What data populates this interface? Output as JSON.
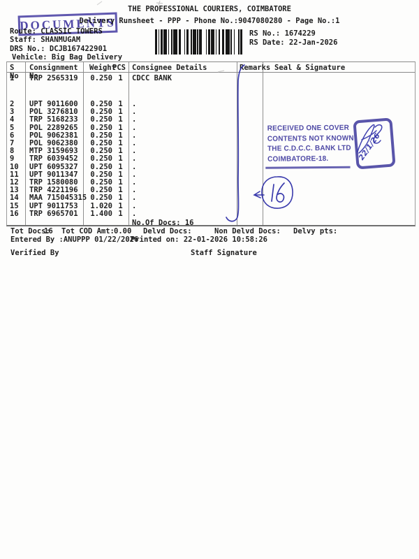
{
  "document": {
    "title": "THE PROFESSIONAL COURIERS, COIMBATORE",
    "subtitle": "Delivery Runsheet - PPP - Phone No.:9047080280 - Page No.:1",
    "route_label": "Route:",
    "route_value": "CLASSIC TOWERS",
    "staff_label": "Staff:",
    "staff_value": "SHANMUGAM",
    "drs_label": "DRS No.:",
    "drs_value": "DCJB167422901",
    "vehicle_label": "Vehicle:",
    "vehicle_value": "Big Bag Delivery",
    "rs_no_label": "RS No.:",
    "rs_no_value": "1674229",
    "rs_date_label": "RS Date:",
    "rs_date_value": "22-Jan-2026"
  },
  "table": {
    "columns": {
      "sno": "S No",
      "consignment": "Consignment No",
      "weight": "Weight",
      "pcs": "PCS",
      "consignee": "Consignee Details",
      "remarks": "Remarks",
      "seal": "Seal & Signature"
    },
    "rows": [
      {
        "sno": "1",
        "consignment": "TRP 2565319",
        "weight": "0.250",
        "pcs": "1",
        "consignee": "CDCC BANK"
      },
      {
        "sno": "2",
        "consignment": "UPT 9011600",
        "weight": "0.250",
        "pcs": "1",
        "consignee": "."
      },
      {
        "sno": "3",
        "consignment": "POL 3276810",
        "weight": "0.250",
        "pcs": "1",
        "consignee": "."
      },
      {
        "sno": "4",
        "consignment": "TRP 5168233",
        "weight": "0.250",
        "pcs": "1",
        "consignee": "."
      },
      {
        "sno": "5",
        "consignment": "POL 2289265",
        "weight": "0.250",
        "pcs": "1",
        "consignee": "."
      },
      {
        "sno": "6",
        "consignment": "POL 9062381",
        "weight": "0.250",
        "pcs": "1",
        "consignee": "."
      },
      {
        "sno": "7",
        "consignment": "POL 9062380",
        "weight": "0.250",
        "pcs": "1",
        "consignee": "."
      },
      {
        "sno": "8",
        "consignment": "MTP 3159693",
        "weight": "0.250",
        "pcs": "1",
        "consignee": "."
      },
      {
        "sno": "9",
        "consignment": "TRP 6039452",
        "weight": "0.250",
        "pcs": "1",
        "consignee": "."
      },
      {
        "sno": "10",
        "consignment": "UPT 6095327",
        "weight": "0.250",
        "pcs": "1",
        "consignee": "."
      },
      {
        "sno": "11",
        "consignment": "UPT 9011347",
        "weight": "0.250",
        "pcs": "1",
        "consignee": "."
      },
      {
        "sno": "12",
        "consignment": "TRP 1580080",
        "weight": "0.250",
        "pcs": "1",
        "consignee": "."
      },
      {
        "sno": "13",
        "consignment": "TRP 4221196",
        "weight": "0.250",
        "pcs": "1",
        "consignee": "."
      },
      {
        "sno": "14",
        "consignment": "MAA 715045315",
        "weight": "0.250",
        "pcs": "1",
        "consignee": "."
      },
      {
        "sno": "15",
        "consignment": "UPT 9011753",
        "weight": "1.020",
        "pcs": "1",
        "consignee": "."
      },
      {
        "sno": "16",
        "consignment": "TRP 6965701",
        "weight": "1.400",
        "pcs": "1",
        "consignee": "."
      }
    ],
    "no_of_docs": "No.Of Docs: 16"
  },
  "footer": {
    "tot_docs_label": "Tot Docs:",
    "tot_docs_value": "16",
    "tot_cod_label": "Tot COD Amt:",
    "tot_cod_value": "0.00",
    "delvd_docs_label": "Delvd Docs:",
    "non_delvd_docs_label": "Non Delvd Docs:",
    "delvy_pts_label": "Delvy pts:",
    "entered_by": "Entered By :ANUPPP 01/22/2026",
    "printed_on": "Printed on: 22-01-2026 10:58:26",
    "verified_by": "Verified By",
    "staff_signature": "Staff Signature"
  },
  "annotations": {
    "documents_stamp_text": "DOCUMENTS",
    "received_stamp_lines": [
      "RECEIVED ONE COVER",
      "CONTENTS NOT KNOWN",
      "THE C.D.C.C. BANK LTD",
      "COIMBATORE-18."
    ],
    "signature_date": "22/1/26",
    "circled_count": "16"
  },
  "colors": {
    "stamp_ink": "#433ea1",
    "pen_ink": "#2e2fa8",
    "text_ink": "#1e1e1e",
    "table_line": "#8f8f8f"
  }
}
